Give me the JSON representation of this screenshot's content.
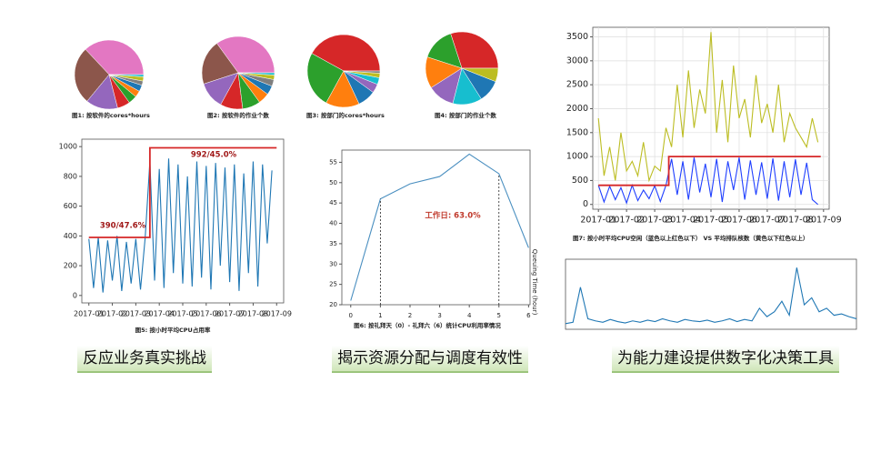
{
  "chart_data": [
    {
      "type": "pie",
      "title": "图1: 按软件的cores*hours",
      "values": [
        37,
        27,
        15,
        6,
        4,
        3,
        3,
        2,
        2,
        1
      ],
      "colors": [
        "#e377c2",
        "#8c564b",
        "#9467bd",
        "#d62728",
        "#2ca02c",
        "#ff7f0e",
        "#1f77b4",
        "#7f7f7f",
        "#bcbd22",
        "#17becf"
      ]
    },
    {
      "type": "pie",
      "title": "图2: 按软件的作业个数",
      "values": [
        35,
        20,
        12,
        10,
        8,
        5,
        4,
        3,
        2,
        1
      ],
      "colors": [
        "#e377c2",
        "#8c564b",
        "#9467bd",
        "#d62728",
        "#2ca02c",
        "#ff7f0e",
        "#1f77b4",
        "#7f7f7f",
        "#bcbd22",
        "#17becf"
      ]
    },
    {
      "type": "pie",
      "title": "图3: 按部门的cores*hours",
      "values": [
        42,
        25,
        15,
        8,
        4,
        3,
        2,
        1
      ],
      "colors": [
        "#d62728",
        "#2ca02c",
        "#ff7f0e",
        "#1f77b4",
        "#9467bd",
        "#17becf",
        "#bcbd22",
        "#7f7f7f"
      ]
    },
    {
      "type": "pie",
      "title": "图4: 按部门的作业个数",
      "values": [
        30,
        15,
        14,
        12,
        13,
        10,
        6
      ],
      "colors": [
        "#d62728",
        "#2ca02c",
        "#ff7f0e",
        "#9467bd",
        "#17becf",
        "#1f77b4",
        "#bcbd22"
      ]
    },
    {
      "type": "line",
      "title": "图5: 按小时平均CPU占用率",
      "xlim": [
        -0.3,
        8.3
      ],
      "ylim": [
        -50,
        1050
      ],
      "xticks": [
        {
          "value": 0,
          "label": "2017-01"
        },
        {
          "value": 1,
          "label": "2017-02"
        },
        {
          "value": 2,
          "label": "2017-03"
        },
        {
          "value": 3,
          "label": "2017-04"
        },
        {
          "value": 4,
          "label": "2017-05"
        },
        {
          "value": 5,
          "label": "2017-06"
        },
        {
          "value": 6,
          "label": "2017-07"
        },
        {
          "value": 7,
          "label": "2017-08"
        },
        {
          "value": 8,
          "label": "2017-09"
        }
      ],
      "yticks": [
        0,
        200,
        400,
        600,
        800,
        1000
      ],
      "grid": false,
      "annotations": [
        "390/47.6%",
        "992/45.0%"
      ],
      "series": [
        {
          "color": "#1f77b4",
          "x": [
            0,
            0.2,
            0.4,
            0.6,
            0.8,
            1,
            1.2,
            1.4,
            1.6,
            1.8,
            2,
            2.2,
            2.4,
            2.6,
            2.8,
            3,
            3.2,
            3.4,
            3.6,
            3.8,
            4,
            4.2,
            4.4,
            4.6,
            4.8,
            5,
            5.2,
            5.4,
            5.6,
            5.8,
            6,
            6.2,
            6.4,
            6.6,
            6.8,
            7,
            7.2,
            7.4,
            7.6,
            7.8
          ],
          "values": [
            380,
            50,
            390,
            20,
            370,
            100,
            400,
            30,
            360,
            80,
            380,
            40,
            390,
            900,
            100,
            850,
            50,
            920,
            150,
            880,
            80,
            800,
            60,
            900,
            120,
            870,
            40,
            890,
            200,
            860,
            90,
            880,
            30,
            820,
            150,
            900,
            60,
            880,
            350,
            840
          ]
        },
        {
          "color": "#d62728",
          "x": [
            0,
            2.6,
            2.6,
            8
          ],
          "values": [
            390,
            390,
            992,
            992
          ]
        }
      ]
    },
    {
      "type": "line",
      "title": "图6: 按礼拜天（0）- 礼拜六（6）统计CPU利用率情况",
      "xlim": [
        -0.3,
        6.05
      ],
      "ylim": [
        20,
        58
      ],
      "xticks": [
        0,
        1,
        2,
        3,
        4,
        5,
        6
      ],
      "yticks": [
        20,
        25,
        30,
        35,
        40,
        45,
        50,
        55
      ],
      "grid": false,
      "annotations": [
        "工作日: 63.0%"
      ],
      "vlines": [
        1,
        5
      ],
      "series": [
        {
          "color": "#4a8fc0",
          "x": [
            0,
            1,
            2,
            3,
            4,
            5,
            6
          ],
          "values": [
            21,
            46,
            49.7,
            51.5,
            57,
            52.2,
            34
          ]
        }
      ]
    },
    {
      "type": "line",
      "title": "图7: 按小时平均CPU空闲（蓝色以上红色以下） VS 平均排队核数（黄色以下红色以上）",
      "xlim": [
        -0.2,
        8.2
      ],
      "ylim": [
        -100,
        3700
      ],
      "xticks": [
        {
          "value": 0,
          "label": "2017-01"
        },
        {
          "value": 1,
          "label": "2017-02"
        },
        {
          "value": 2,
          "label": "2017-03"
        },
        {
          "value": 3,
          "label": "2017-04"
        },
        {
          "value": 4,
          "label": "2017-05"
        },
        {
          "value": 5,
          "label": "2017-06"
        },
        {
          "value": 6,
          "label": "2017-07"
        },
        {
          "value": 7,
          "label": "2017-08"
        },
        {
          "value": 8,
          "label": "2017-09"
        }
      ],
      "yticks": [
        0,
        500,
        1000,
        1500,
        2000,
        2500,
        3000,
        3500
      ],
      "grid": true,
      "series": [
        {
          "color": "#bcbd22",
          "x": [
            0,
            0.2,
            0.4,
            0.6,
            0.8,
            1,
            1.2,
            1.4,
            1.6,
            1.8,
            2,
            2.2,
            2.4,
            2.6,
            2.8,
            3,
            3.2,
            3.4,
            3.6,
            3.8,
            4,
            4.2,
            4.4,
            4.6,
            4.8,
            5,
            5.2,
            5.4,
            5.6,
            5.8,
            6,
            6.2,
            6.4,
            6.6,
            6.8,
            7,
            7.2,
            7.4,
            7.6,
            7.8
          ],
          "values": [
            1800,
            600,
            1200,
            500,
            1500,
            700,
            900,
            600,
            1300,
            500,
            800,
            700,
            1600,
            1200,
            2500,
            1400,
            2800,
            1600,
            2400,
            1900,
            3600,
            1500,
            2600,
            1300,
            2900,
            1800,
            2200,
            1400,
            2700,
            1700,
            2100,
            1500,
            2500,
            1300,
            1900,
            1600,
            1400,
            1200,
            1800,
            1300
          ]
        },
        {
          "color": "#1f3fff",
          "x": [
            0,
            0.2,
            0.4,
            0.6,
            0.8,
            1,
            1.2,
            1.4,
            1.6,
            1.8,
            2,
            2.2,
            2.4,
            2.6,
            2.8,
            3,
            3.2,
            3.4,
            3.6,
            3.8,
            4,
            4.2,
            4.4,
            4.6,
            4.8,
            5,
            5.2,
            5.4,
            5.6,
            5.8,
            6,
            6.2,
            6.4,
            6.6,
            6.8,
            7,
            7.2,
            7.4,
            7.6,
            7.8
          ],
          "values": [
            400,
            50,
            380,
            100,
            350,
            30,
            400,
            80,
            300,
            120,
            390,
            60,
            400,
            950,
            200,
            900,
            100,
            980,
            250,
            850,
            150,
            950,
            50,
            900,
            300,
            980,
            100,
            920,
            200,
            880,
            120,
            960,
            80,
            900,
            150,
            940,
            200,
            870,
            100,
            0
          ]
        },
        {
          "color": "#d62728",
          "x": [
            0,
            2.5,
            2.5,
            7.9
          ],
          "values": [
            400,
            400,
            1000,
            1000
          ]
        }
      ]
    },
    {
      "type": "line",
      "ylabel": "Queuing Time (hour)",
      "ylim": [
        0,
        100
      ],
      "series": [
        {
          "color": "#1f77b4",
          "values": [
            8,
            10,
            60,
            15,
            12,
            10,
            14,
            11,
            9,
            12,
            10,
            13,
            11,
            15,
            12,
            10,
            14,
            12,
            11,
            13,
            10,
            12,
            15,
            11,
            14,
            12,
            30,
            18,
            25,
            40,
            20,
            88,
            35,
            45,
            25,
            30,
            20,
            22,
            18,
            15
          ]
        }
      ]
    }
  ],
  "slide_labels": [
    "反应业务真实挑战",
    "揭示资源分配与调度有效性",
    "为能力建设提供数字化决策工具"
  ]
}
